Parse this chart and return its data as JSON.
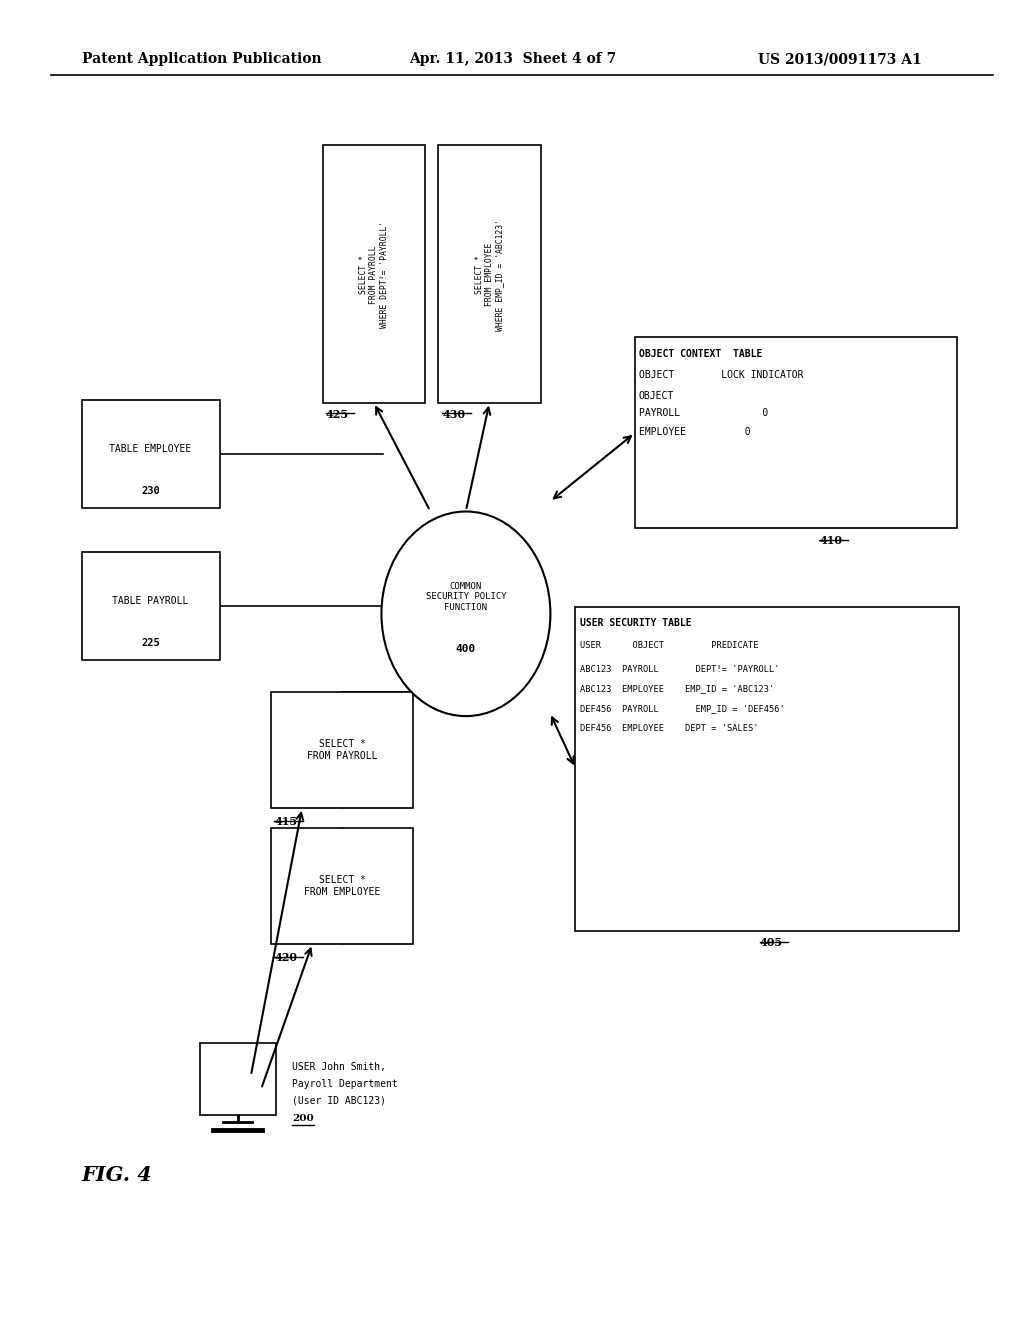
{
  "bg_color": "#ffffff",
  "header_left": "Patent Application Publication",
  "header_mid": "Apr. 11, 2013  Sheet 4 of 7",
  "header_right": "US 2013/0091173 A1",
  "fig_label": "FIG. 4"
}
